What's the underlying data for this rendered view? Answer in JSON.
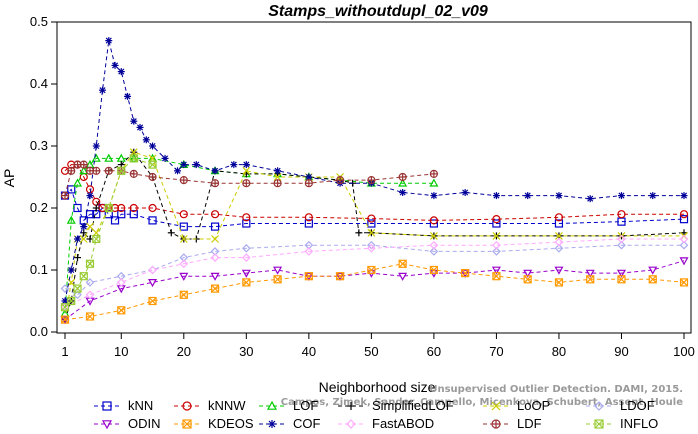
{
  "chart_data": {
    "type": "line",
    "title": "Stamps_withoutdupl_02_v09",
    "xlabel": "Neighborhood size",
    "ylabel": "AP",
    "xlim": [
      1,
      100
    ],
    "ylim": [
      0,
      0.5
    ],
    "xticks": [
      1,
      10,
      20,
      30,
      40,
      50,
      60,
      70,
      80,
      90,
      100
    ],
    "yticks": [
      0.0,
      0.1,
      0.2,
      0.3,
      0.4,
      0.5
    ],
    "watermark_lines": [
      "Unsupervised Outlier Detection. DAMI, 2015.",
      "Campos, Zimek, Sander, Campello, Micenkova, Schubert, Assent, Houle"
    ],
    "legend_placement": "bottom",
    "series": [
      {
        "name": "kNN",
        "color": "#0000cc",
        "marker": "square",
        "x": [
          1,
          2,
          3,
          4,
          5,
          6,
          7,
          8,
          9,
          10,
          12,
          15,
          20,
          25,
          30,
          40,
          50,
          60,
          70,
          80,
          90,
          100
        ],
        "values": [
          0.22,
          0.23,
          0.2,
          0.18,
          0.19,
          0.19,
          0.2,
          0.19,
          0.18,
          0.19,
          0.19,
          0.18,
          0.17,
          0.17,
          0.175,
          0.175,
          0.175,
          0.175,
          0.175,
          0.175,
          0.178,
          0.182
        ]
      },
      {
        "name": "kNNW",
        "color": "#cc0000",
        "marker": "circle",
        "x": [
          1,
          2,
          3,
          4,
          5,
          6,
          7,
          8,
          9,
          10,
          12,
          15,
          20,
          25,
          30,
          40,
          50,
          60,
          70,
          80,
          90,
          100
        ],
        "values": [
          0.26,
          0.27,
          0.27,
          0.25,
          0.23,
          0.21,
          0.2,
          0.2,
          0.2,
          0.2,
          0.2,
          0.2,
          0.19,
          0.19,
          0.185,
          0.185,
          0.183,
          0.18,
          0.182,
          0.185,
          0.19,
          0.19
        ]
      },
      {
        "name": "LOF",
        "color": "#00cc00",
        "marker": "triangle",
        "x": [
          1,
          2,
          3,
          4,
          5,
          6,
          8,
          10,
          12,
          15,
          20,
          25,
          30,
          35,
          40,
          45,
          50,
          55,
          60
        ],
        "values": [
          0.03,
          0.18,
          0.24,
          0.26,
          0.27,
          0.28,
          0.28,
          0.28,
          0.28,
          0.28,
          0.27,
          0.26,
          0.255,
          0.255,
          0.25,
          0.245,
          0.24,
          0.24,
          0.24
        ]
      },
      {
        "name": "SimplifiedLOF",
        "color": "#000000",
        "marker": "plus",
        "x": [
          1,
          2,
          3,
          4,
          5,
          6,
          8,
          10,
          12,
          15,
          18,
          20,
          22,
          25,
          30,
          35,
          40,
          45,
          47,
          48,
          50,
          60,
          70,
          80,
          90,
          100
        ],
        "values": [
          0.02,
          0.05,
          0.12,
          0.16,
          0.15,
          0.2,
          0.26,
          0.27,
          0.29,
          0.25,
          0.16,
          0.15,
          0.15,
          0.26,
          0.255,
          0.255,
          0.25,
          0.245,
          0.24,
          0.16,
          0.16,
          0.155,
          0.155,
          0.155,
          0.155,
          0.16
        ]
      },
      {
        "name": "LoOP",
        "color": "#cccc00",
        "marker": "x",
        "x": [
          1,
          2,
          3,
          4,
          5,
          6,
          8,
          10,
          12,
          15,
          20,
          25,
          30,
          35,
          40,
          45,
          50,
          60,
          70,
          80,
          90,
          100
        ],
        "values": [
          0.02,
          0.08,
          0.15,
          0.15,
          0.17,
          0.16,
          0.2,
          0.26,
          0.29,
          0.28,
          0.15,
          0.15,
          0.26,
          0.25,
          0.25,
          0.25,
          0.16,
          0.155,
          0.155,
          0.155,
          0.155,
          0.155
        ]
      },
      {
        "name": "LDOF",
        "color": "#aaaaee",
        "marker": "diamond",
        "x": [
          1,
          3,
          5,
          10,
          15,
          20,
          25,
          30,
          40,
          50,
          60,
          70,
          80,
          90,
          100
        ],
        "values": [
          0.07,
          0.06,
          0.08,
          0.09,
          0.1,
          0.12,
          0.13,
          0.135,
          0.14,
          0.14,
          0.13,
          0.13,
          0.135,
          0.14,
          0.14
        ]
      },
      {
        "name": "ODIN",
        "color": "#9900cc",
        "marker": "triangle-down",
        "x": [
          1,
          5,
          10,
          15,
          20,
          25,
          30,
          35,
          40,
          45,
          50,
          55,
          60,
          65,
          70,
          75,
          80,
          85,
          90,
          95,
          100
        ],
        "values": [
          0.02,
          0.05,
          0.07,
          0.08,
          0.09,
          0.09,
          0.095,
          0.1,
          0.09,
          0.09,
          0.095,
          0.09,
          0.095,
          0.095,
          0.1,
          0.095,
          0.1,
          0.095,
          0.095,
          0.1,
          0.115
        ]
      },
      {
        "name": "KDEOS",
        "color": "#ff9900",
        "marker": "square-x",
        "x": [
          1,
          5,
          10,
          15,
          20,
          25,
          30,
          35,
          40,
          45,
          50,
          55,
          60,
          65,
          70,
          75,
          80,
          85,
          90,
          95,
          100
        ],
        "values": [
          0.02,
          0.025,
          0.035,
          0.05,
          0.06,
          0.07,
          0.08,
          0.085,
          0.09,
          0.09,
          0.1,
          0.11,
          0.1,
          0.095,
          0.09,
          0.085,
          0.08,
          0.085,
          0.085,
          0.085,
          0.08
        ]
      },
      {
        "name": "COF",
        "color": "#000099",
        "marker": "asterisk",
        "x": [
          1,
          2,
          3,
          4,
          5,
          6,
          7,
          8,
          9,
          10,
          11,
          12,
          13,
          14,
          15,
          17,
          19,
          20,
          22,
          25,
          28,
          30,
          35,
          40,
          45,
          50,
          55,
          60,
          65,
          70,
          75,
          80,
          85,
          90,
          95,
          100
        ],
        "values": [
          0.05,
          0.1,
          0.15,
          0.17,
          0.22,
          0.3,
          0.39,
          0.47,
          0.43,
          0.42,
          0.38,
          0.34,
          0.33,
          0.31,
          0.3,
          0.28,
          0.26,
          0.27,
          0.27,
          0.26,
          0.27,
          0.27,
          0.26,
          0.25,
          0.24,
          0.24,
          0.225,
          0.22,
          0.225,
          0.22,
          0.22,
          0.22,
          0.215,
          0.22,
          0.22,
          0.22
        ]
      },
      {
        "name": "FastABOD",
        "color": "#ffaaff",
        "marker": "diamond",
        "x": [
          1,
          5,
          10,
          15,
          20,
          25,
          30,
          40,
          50,
          60,
          70,
          80,
          90,
          100
        ],
        "values": [
          0.04,
          0.06,
          0.08,
          0.1,
          0.11,
          0.12,
          0.12,
          0.13,
          0.135,
          0.14,
          0.14,
          0.145,
          0.15,
          0.15
        ]
      },
      {
        "name": "LDF",
        "color": "#993333",
        "marker": "circle-plus",
        "x": [
          1,
          2,
          3,
          4,
          5,
          6,
          8,
          10,
          12,
          15,
          20,
          25,
          30,
          35,
          40,
          45,
          50,
          55,
          60
        ],
        "values": [
          0.22,
          0.26,
          0.27,
          0.27,
          0.26,
          0.26,
          0.26,
          0.26,
          0.255,
          0.25,
          0.245,
          0.24,
          0.24,
          0.24,
          0.24,
          0.245,
          0.245,
          0.25,
          0.255
        ]
      },
      {
        "name": "INFLO",
        "color": "#99cc33",
        "marker": "square-x",
        "x": [
          1,
          2,
          3,
          4,
          5,
          6,
          8,
          10,
          12,
          15
        ],
        "values": [
          0.04,
          0.05,
          0.07,
          0.09,
          0.11,
          0.15,
          0.2,
          0.26,
          0.28,
          0.27
        ]
      }
    ]
  }
}
